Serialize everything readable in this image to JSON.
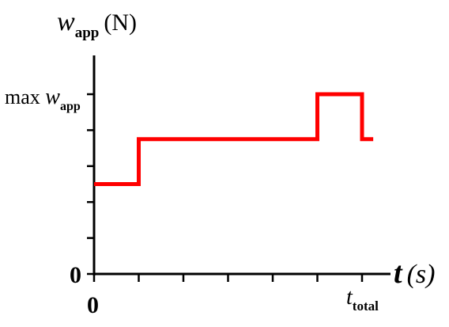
{
  "chart_data": {
    "type": "line",
    "title": "",
    "ylabel": {
      "symbol": "w",
      "subscript": "app",
      "unit": "(N)"
    },
    "xlabel": {
      "symbol": "t",
      "unit": "(s)"
    },
    "ytick_labels": {
      "max": {
        "prefix": "max ",
        "symbol": "w",
        "subscript": "app"
      },
      "zero": "0"
    },
    "xtick_labels": {
      "zero": "0",
      "total": {
        "symbol": "t",
        "subscript": "total"
      }
    },
    "xlim": [
      0,
      1
    ],
    "ylim": [
      0,
      1
    ],
    "yticks": [
      0,
      0.2,
      0.4,
      0.6,
      0.8,
      1
    ],
    "xticks": [
      0,
      0.1667,
      0.3333,
      0.5,
      0.6667,
      0.8333,
      1
    ],
    "series": [
      {
        "color": "#ff0000",
        "step": true,
        "x": [
          0,
          0.1667,
          0.1667,
          0.8333,
          0.8333,
          1.0,
          1.0,
          1.0417
        ],
        "y": [
          0.5,
          0.5,
          0.75,
          0.75,
          1.0,
          1.0,
          0.75,
          0.75
        ]
      }
    ],
    "grid": false,
    "legend": "none"
  }
}
